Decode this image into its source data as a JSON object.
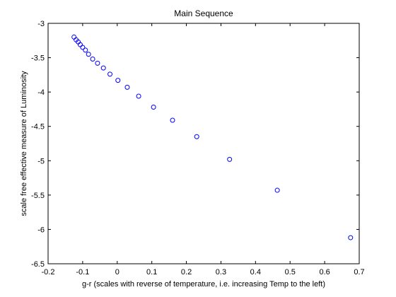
{
  "chart_data": {
    "type": "scatter",
    "title": "Main Sequence",
    "xlabel": "g-r (scales with reverse of temperature, i.e. increasing Temp to the left)",
    "ylabel": "scale free effective measure of Luminosity",
    "xlim": [
      -0.2,
      0.7
    ],
    "ylim": [
      -6.5,
      -3
    ],
    "xticks": [
      -0.2,
      -0.1,
      0,
      0.1,
      0.2,
      0.3,
      0.4,
      0.5,
      0.6,
      0.7
    ],
    "xtick_labels": [
      "-0.2",
      "-0.1",
      "0",
      "0.1",
      "0.2",
      "0.3",
      "0.4",
      "0.5",
      "0.6",
      "0.7"
    ],
    "yticks": [
      -3,
      -3.5,
      -4,
      -4.5,
      -5,
      -5.5,
      -6,
      -6.5
    ],
    "ytick_labels": [
      "-3",
      "-3.5",
      "-4",
      "-4.5",
      "-5",
      "-5.5",
      "-6",
      "-6.5"
    ],
    "grid": false,
    "marker": "open-circle",
    "marker_color": "#0000ff",
    "series": [
      {
        "points": [
          [
            -0.125,
            -3.2
          ],
          [
            -0.119,
            -3.24
          ],
          [
            -0.113,
            -3.27
          ],
          [
            -0.107,
            -3.31
          ],
          [
            -0.1,
            -3.35
          ],
          [
            -0.092,
            -3.39
          ],
          [
            -0.083,
            -3.45
          ],
          [
            -0.071,
            -3.52
          ],
          [
            -0.057,
            -3.58
          ],
          [
            -0.04,
            -3.65
          ],
          [
            -0.021,
            -3.74
          ],
          [
            0.002,
            -3.83
          ],
          [
            0.029,
            -3.93
          ],
          [
            0.062,
            -4.06
          ],
          [
            0.105,
            -4.22
          ],
          [
            0.16,
            -4.41
          ],
          [
            0.23,
            -4.65
          ],
          [
            0.325,
            -4.98
          ],
          [
            0.463,
            -5.43
          ],
          [
            0.675,
            -6.12
          ]
        ]
      }
    ]
  }
}
